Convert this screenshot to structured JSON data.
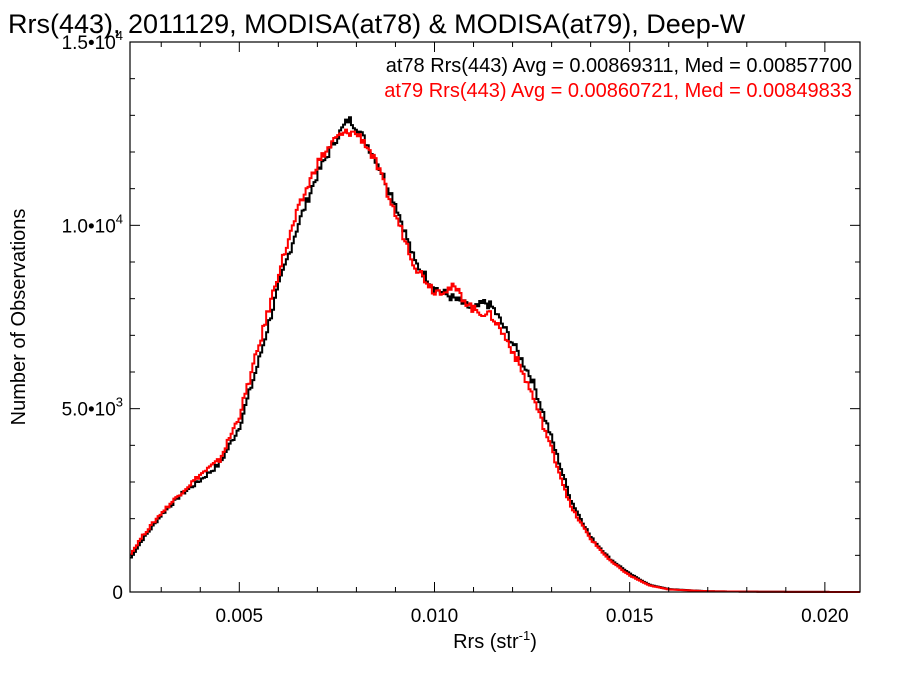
{
  "chart_data": {
    "type": "line",
    "title": "Rrs(443), 2011129, MODISA(at78) & MODISA(at79), Deep-W",
    "xlabel": "Rrs (str",
    "xlabel_sup": "-1",
    "xlabel_close": ")",
    "ylabel": "Number of Observations",
    "xlim": [
      0.0022,
      0.0209
    ],
    "ylim": [
      0,
      15000
    ],
    "x_ticks": [
      {
        "value": 0.005,
        "label": "0.005"
      },
      {
        "value": 0.01,
        "label": "0.010"
      },
      {
        "value": 0.015,
        "label": "0.015"
      },
      {
        "value": 0.02,
        "label": "0.020"
      }
    ],
    "y_ticks": [
      {
        "value": 0,
        "label": "0",
        "exp": ""
      },
      {
        "value": 5000,
        "label": "5.0•10",
        "exp": "3"
      },
      {
        "value": 10000,
        "label": "1.0•10",
        "exp": "4"
      },
      {
        "value": 15000,
        "label": "1.5•10",
        "exp": "4"
      }
    ],
    "annotations": [
      {
        "text": "at78 Rrs(443) Avg = 0.00869311, Med = 0.00857700",
        "color": "#000000"
      },
      {
        "text": "at79 Rrs(443) Avg = 0.00860721, Med = 0.00849833",
        "color": "#ff0000"
      }
    ],
    "series": [
      {
        "color": "#000000",
        "x": [
          0.0022,
          0.0025,
          0.003,
          0.0035,
          0.004,
          0.0045,
          0.005,
          0.0055,
          0.006,
          0.0065,
          0.007,
          0.0075,
          0.0078,
          0.008,
          0.0082,
          0.0085,
          0.009,
          0.0095,
          0.01,
          0.0105,
          0.011,
          0.0113,
          0.0115,
          0.012,
          0.0125,
          0.013,
          0.0135,
          0.014,
          0.0145,
          0.015,
          0.0155,
          0.016,
          0.017,
          0.018,
          0.019,
          0.02,
          0.0209
        ],
        "y": [
          900,
          1400,
          2100,
          2650,
          3050,
          3500,
          4500,
          6300,
          8300,
          10000,
          11400,
          12400,
          12900,
          12700,
          12350,
          11800,
          10600,
          9000,
          8300,
          8000,
          7700,
          7900,
          7750,
          6800,
          5800,
          4200,
          2500,
          1500,
          900,
          500,
          200,
          80,
          20,
          10,
          5,
          2,
          0
        ]
      },
      {
        "color": "#ff0000",
        "x": [
          0.0022,
          0.0025,
          0.003,
          0.0035,
          0.004,
          0.0045,
          0.005,
          0.0055,
          0.006,
          0.0065,
          0.007,
          0.0075,
          0.0078,
          0.008,
          0.0082,
          0.0085,
          0.009,
          0.0095,
          0.01,
          0.0105,
          0.011,
          0.0113,
          0.0115,
          0.012,
          0.0125,
          0.013,
          0.0135,
          0.014,
          0.0145,
          0.015,
          0.0155,
          0.016,
          0.017,
          0.018,
          0.019,
          0.02,
          0.0209
        ],
        "y": [
          1000,
          1500,
          2150,
          2700,
          3200,
          3600,
          4800,
          6700,
          8700,
          10400,
          11700,
          12400,
          12550,
          12500,
          12300,
          11700,
          10300,
          8900,
          8200,
          8300,
          7700,
          7600,
          7500,
          6600,
          5400,
          3900,
          2300,
          1450,
          850,
          450,
          180,
          70,
          20,
          10,
          5,
          2,
          0
        ]
      }
    ]
  }
}
